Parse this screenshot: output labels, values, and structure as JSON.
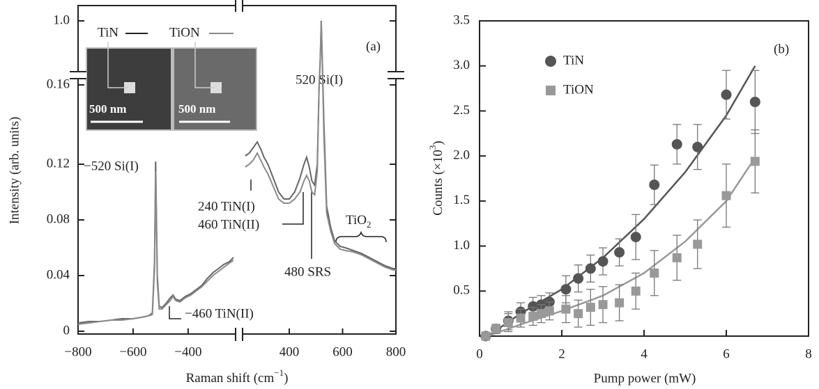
{
  "chart_data": [
    {
      "type": "line",
      "xlabel": "Raman shift  (cm",
      "xlabel_sup": "−1",
      "xlabel_end": ")",
      "ylabel": "Intensity  (arb. units)",
      "panel_label": "(a)",
      "xlim": [
        -800,
        800
      ],
      "xbreak": [
        -230,
        230
      ],
      "ylim": [
        0,
        1.0
      ],
      "ybreak": [
        0.15,
        0.16
      ],
      "xticks": [
        {
          "value": -800,
          "label": "−800"
        },
        {
          "value": -600,
          "label": "−600"
        },
        {
          "value": -400,
          "label": "−400"
        },
        400,
        600,
        800
      ],
      "yticks": [
        0,
        0.04,
        0.08,
        0.12,
        0.16,
        {
          "value": 1,
          "label": "1.0"
        }
      ],
      "inset": {
        "labels": [
          "TiN",
          "TiON"
        ],
        "scale_bar": "500 nm"
      },
      "annotations": [
        "−520 Si(I)",
        "520 Si(I)",
        "240 TiN(I)",
        "460 TiN(II)",
        "480 SRS",
        "−460 TiN(II)",
        "TiO",
        "2"
      ],
      "x": [
        -800,
        -760,
        -720,
        -680,
        -640,
        -600,
        -570,
        -545,
        -530,
        -522,
        -518,
        -512,
        -505,
        -495,
        -480,
        -465,
        -455,
        -445,
        -430,
        -410,
        -390,
        -370,
        -350,
        -330,
        -310,
        -290,
        -270,
        -250,
        -235,
        0,
        235,
        250,
        265,
        280,
        295,
        305,
        320,
        340,
        360,
        380,
        400,
        420,
        440,
        455,
        465,
        475,
        485,
        495,
        505,
        512,
        516,
        520,
        524,
        530,
        540,
        555,
        570,
        590,
        610,
        640,
        670,
        700,
        730,
        760,
        790,
        800
      ],
      "series": [
        {
          "name": "TiN",
          "color": "#666666",
          "values": [
            0.006,
            0.007,
            0.007,
            0.008,
            0.009,
            0.009,
            0.01,
            0.011,
            0.013,
            0.05,
            0.122,
            0.04,
            0.018,
            0.017,
            0.02,
            0.024,
            0.026,
            0.023,
            0.022,
            0.025,
            0.027,
            0.03,
            0.033,
            0.038,
            0.042,
            0.045,
            0.048,
            0.05,
            0.053,
            null,
            0.126,
            0.128,
            0.132,
            0.136,
            0.13,
            0.125,
            0.12,
            0.11,
            0.1,
            0.095,
            0.095,
            0.1,
            0.11,
            0.12,
            0.125,
            0.118,
            0.108,
            0.105,
            0.12,
            0.18,
            0.5,
            1.0,
            0.5,
            0.15,
            0.09,
            0.075,
            0.065,
            0.061,
            0.06,
            0.058,
            0.056,
            0.053,
            0.05,
            0.047,
            0.045,
            0.045
          ]
        },
        {
          "name": "TiON",
          "color": "#8a8a8a",
          "values": [
            0.005,
            0.006,
            0.007,
            0.008,
            0.008,
            0.009,
            0.01,
            0.011,
            0.012,
            0.045,
            0.115,
            0.035,
            0.016,
            0.016,
            0.019,
            0.022,
            0.025,
            0.022,
            0.021,
            0.024,
            0.026,
            0.029,
            0.032,
            0.036,
            0.04,
            0.043,
            0.046,
            0.049,
            0.051,
            null,
            0.118,
            0.12,
            0.123,
            0.128,
            0.122,
            0.118,
            0.113,
            0.104,
            0.095,
            0.092,
            0.092,
            0.095,
            0.1,
            0.108,
            0.112,
            0.108,
            0.1,
            0.098,
            0.115,
            0.17,
            0.45,
            0.98,
            0.45,
            0.14,
            0.085,
            0.072,
            0.063,
            0.059,
            0.058,
            0.057,
            0.055,
            0.052,
            0.049,
            0.046,
            0.044,
            0.044
          ]
        }
      ]
    },
    {
      "type": "scatter",
      "xlabel": "Pump power  (mW)",
      "ylabel": "Counts  (×10",
      "ylabel_sup": "3",
      "ylabel_end": ")",
      "panel_label": "(b)",
      "xlim": [
        0,
        8
      ],
      "ylim": [
        0,
        3.5
      ],
      "xticks": [
        0,
        2,
        4,
        6,
        8
      ],
      "yticks": [
        0.5,
        {
          "value": 1,
          "label": "1.0"
        },
        1.5,
        {
          "value": 2,
          "label": "2.0"
        },
        2.5,
        {
          "value": 3,
          "label": "3.0"
        },
        3.5
      ],
      "series": [
        {
          "name": "TiN",
          "color": "#555555",
          "marker": "circle",
          "x": [
            0.15,
            0.4,
            0.7,
            1.0,
            1.3,
            1.5,
            1.7,
            2.1,
            2.4,
            2.7,
            3.0,
            3.4,
            3.8,
            4.25,
            4.8,
            5.3,
            6.0,
            6.7
          ],
          "values": [
            0.0,
            0.08,
            0.17,
            0.27,
            0.33,
            0.35,
            0.38,
            0.52,
            0.64,
            0.75,
            0.83,
            0.93,
            1.1,
            1.68,
            2.13,
            2.1,
            2.68,
            2.6
          ],
          "errors": [
            0.03,
            0.05,
            0.1,
            0.1,
            0.1,
            0.1,
            0.1,
            0.15,
            0.15,
            0.15,
            0.15,
            0.15,
            0.25,
            0.22,
            0.22,
            0.25,
            0.27,
            0.35
          ],
          "fit": {
            "x": [
              0.2,
              1,
              2,
              3,
              4,
              5,
              6,
              6.7
            ],
            "values": [
              0.0,
              0.25,
              0.52,
              0.87,
              1.3,
              1.82,
              2.45,
              3.0
            ]
          }
        },
        {
          "name": "TiON",
          "color": "#999999",
          "marker": "square",
          "x": [
            0.15,
            0.4,
            0.7,
            1.0,
            1.3,
            1.5,
            1.7,
            2.1,
            2.4,
            2.7,
            3.0,
            3.4,
            3.8,
            4.25,
            4.8,
            5.3,
            6.0,
            6.7
          ],
          "values": [
            0.0,
            0.08,
            0.15,
            0.2,
            0.22,
            0.25,
            0.28,
            0.3,
            0.25,
            0.32,
            0.35,
            0.37,
            0.5,
            0.7,
            0.87,
            1.02,
            1.56,
            1.94
          ],
          "errors": [
            0.03,
            0.05,
            0.1,
            0.1,
            0.1,
            0.1,
            0.1,
            0.15,
            0.15,
            0.2,
            0.2,
            0.2,
            0.2,
            0.25,
            0.25,
            0.27,
            0.35,
            0.35
          ],
          "fit": {
            "x": [
              0.2,
              1,
              2,
              3,
              4,
              5,
              6,
              6.7
            ],
            "values": [
              0.0,
              0.13,
              0.28,
              0.45,
              0.7,
              1.05,
              1.5,
              1.98
            ]
          }
        }
      ]
    }
  ]
}
